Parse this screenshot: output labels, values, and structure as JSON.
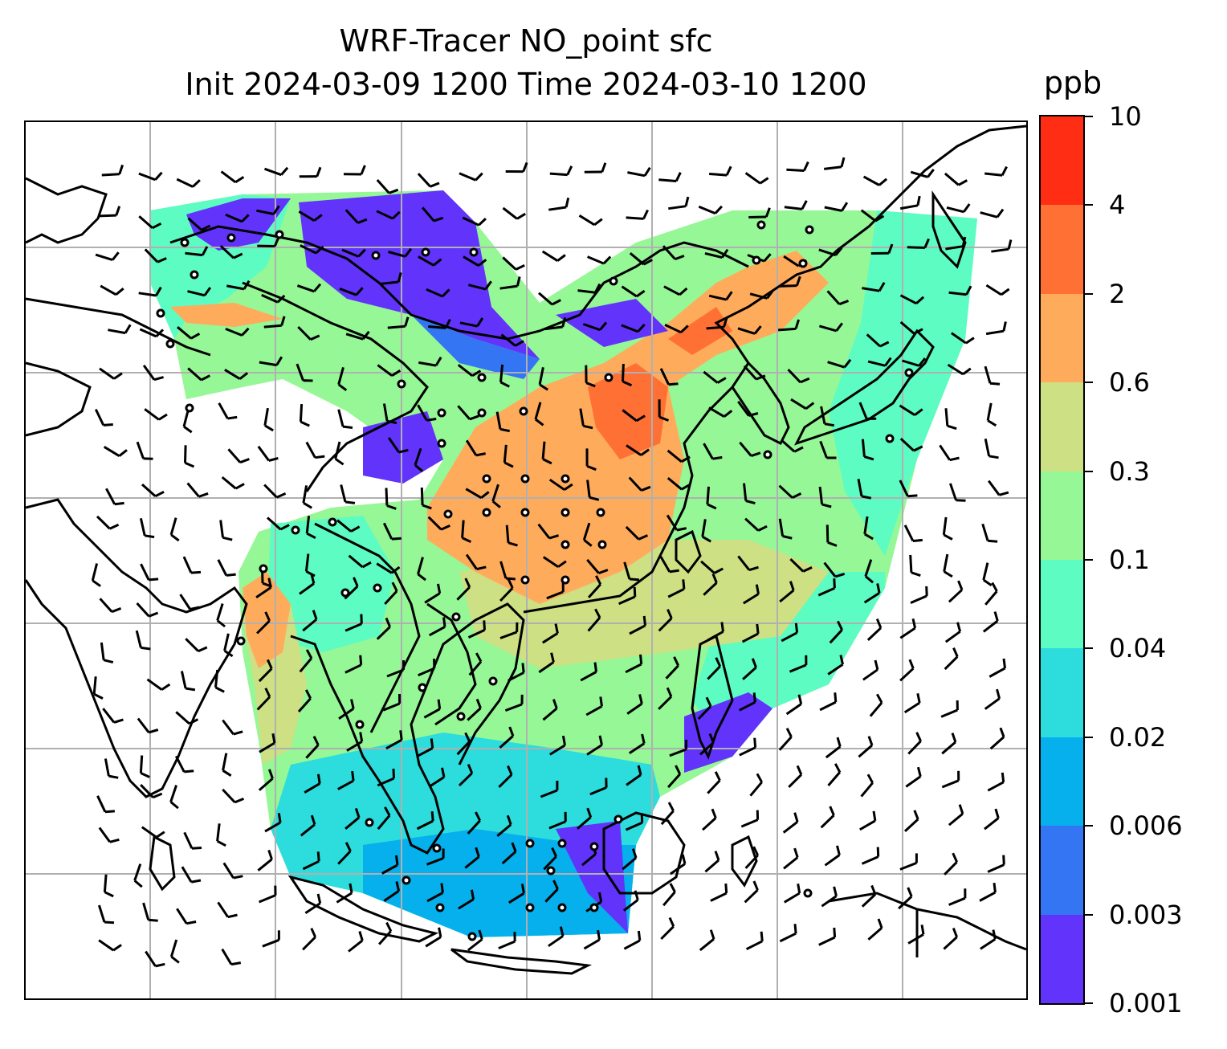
{
  "title": {
    "line1": "WRF-Tracer NO_point sfc",
    "line2": "Init 2024-03-09 1200 Time 2024-03-10 1200"
  },
  "colorbar": {
    "unit": "ppb",
    "ticks": [
      "10",
      "4",
      "2",
      "0.6",
      "0.3",
      "0.1",
      "0.04",
      "0.02",
      "0.006",
      "0.003",
      "0.001"
    ],
    "band_colors_top_to_bottom": [
      "#ff2d14",
      "#ff7034",
      "#ffab5c",
      "#cde084",
      "#96f796",
      "#5dfcc2",
      "#2ddcdc",
      "#05b0ec",
      "#3375f2",
      "#6133fb"
    ]
  },
  "map": {
    "features": [
      "coastlines",
      "gridlines",
      "concentration-field",
      "wind-barbs",
      "point-source-markers"
    ],
    "gridline_color": "#b0b0b0",
    "coastline_color": "#000000"
  }
}
